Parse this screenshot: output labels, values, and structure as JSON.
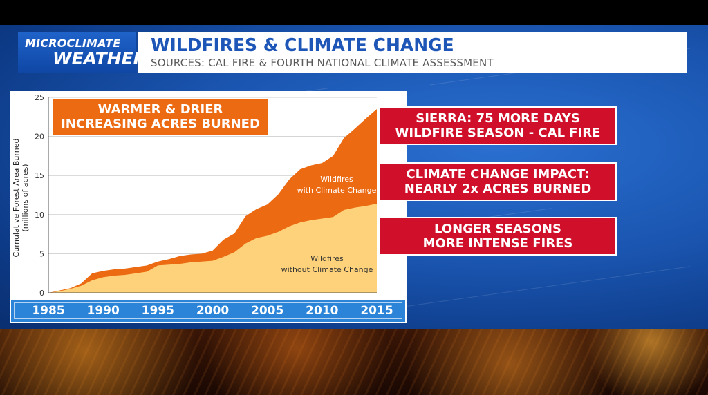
{
  "logo": {
    "line1": "MICROCLIMATE",
    "line2": "WEATHER"
  },
  "header": {
    "title": "WILDFIRES & CLIMATE CHANGE",
    "subtitle": "SOURCES: CAL FIRE & FOURTH NATIONAL CLIMATE ASSESSMENT"
  },
  "callout": {
    "line1": "WARMER & DRIER",
    "line2": "INCREASING ACRES BURNED"
  },
  "facts": [
    {
      "line1": "SIERRA: 75 MORE DAYS",
      "line2": "WILDFIRE SEASON - CAL FIRE"
    },
    {
      "line1": "CLIMATE CHANGE IMPACT:",
      "line2": "NEARLY 2x ACRES BURNED"
    },
    {
      "line1": "LONGER SEASONS",
      "line2": "MORE INTENSE FIRES"
    }
  ],
  "colors": {
    "with_climate_change": "#ec6a12",
    "without_climate_change": "#fdd27a",
    "fact_box": "#d0102b",
    "title_blue": "#1e56b8"
  },
  "chart_data": {
    "type": "area",
    "ylabel": "Cumulative Forest Area Burned (millions of acres)",
    "ylabel_line1": "Cumulative Forest Area Burned",
    "ylabel_line2": "(millions of acres)",
    "xlim": [
      1985,
      2015
    ],
    "ylim": [
      0,
      25
    ],
    "y_ticks": [
      "0",
      "5",
      "10",
      "15",
      "20",
      "25"
    ],
    "x_ticks": [
      "1985",
      "1990",
      "1995",
      "2000",
      "2005",
      "2010",
      "2015"
    ],
    "grid": true,
    "x": [
      1985,
      1986,
      1987,
      1988,
      1989,
      1990,
      1991,
      1992,
      1993,
      1994,
      1995,
      1996,
      1997,
      1998,
      1999,
      2000,
      2001,
      2002,
      2003,
      2004,
      2005,
      2006,
      2007,
      2008,
      2009,
      2010,
      2011,
      2012,
      2013,
      2014,
      2015
    ],
    "series": [
      {
        "name_line1": "Wildfires",
        "name_line2": "with Climate Change",
        "values": [
          0,
          0.3,
          0.6,
          1.2,
          2.5,
          2.8,
          3.0,
          3.1,
          3.3,
          3.5,
          4.0,
          4.3,
          4.7,
          4.9,
          5.0,
          5.4,
          6.8,
          7.6,
          9.8,
          10.7,
          11.3,
          12.6,
          14.5,
          15.8,
          16.3,
          16.6,
          17.5,
          19.8,
          21.0,
          22.3,
          23.5
        ]
      },
      {
        "name_line1": "Wildfires",
        "name_line2": "without Climate Change",
        "values": [
          0,
          0.2,
          0.5,
          0.9,
          1.6,
          2.0,
          2.2,
          2.3,
          2.5,
          2.7,
          3.5,
          3.6,
          3.7,
          3.9,
          4.0,
          4.1,
          4.6,
          5.2,
          6.3,
          7.0,
          7.3,
          7.8,
          8.5,
          9.0,
          9.3,
          9.5,
          9.7,
          10.6,
          10.9,
          11.1,
          11.4
        ]
      }
    ]
  }
}
